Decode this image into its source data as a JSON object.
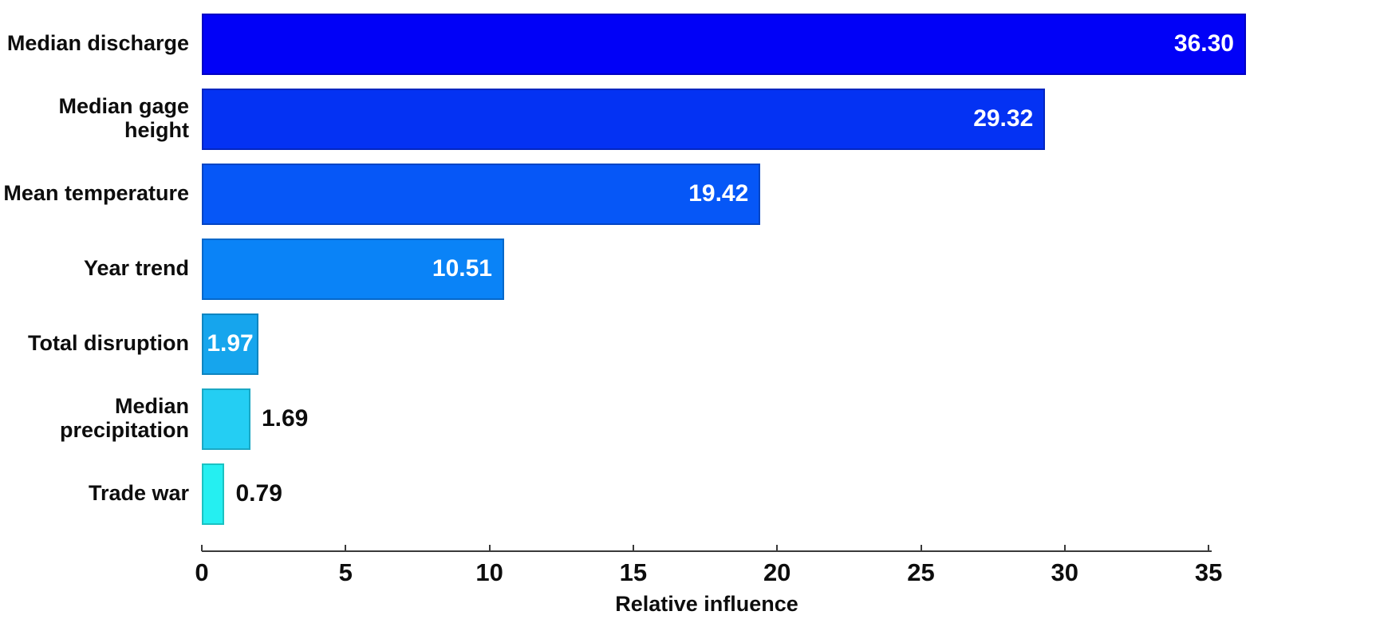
{
  "chart_data": {
    "type": "bar",
    "orientation": "horizontal",
    "title": "",
    "xlabel": "Relative influence",
    "ylabel": "",
    "categories": [
      "Median discharge",
      "Median gage height",
      "Mean temperature",
      "Year trend",
      "Total disruption",
      "Median precipitation",
      "Trade war"
    ],
    "values": [
      36.3,
      29.32,
      19.42,
      10.51,
      1.97,
      1.69,
      0.79
    ],
    "value_labels": [
      "36.30",
      "29.32",
      "19.42",
      "10.51",
      "1.97",
      "1.69",
      "0.79"
    ],
    "bar_colors": [
      "#0101f7",
      "#0432f3",
      "#0657f7",
      "#0a83f7",
      "#16a5ed",
      "#24cef3",
      "#25eff1"
    ],
    "bar_border_colors": [
      "#0000c4",
      "#0426c0",
      "#0345c4",
      "#0668ca",
      "#0f85c0",
      "#1aa8c4",
      "#1bc2c2"
    ],
    "value_label_positions": [
      "inside",
      "inside",
      "inside",
      "inside",
      "inside",
      "outside",
      "outside"
    ],
    "value_label_color_inside": "#ffffff",
    "value_label_color_outside": "#0d0d0d",
    "x_ticks": [
      0,
      5,
      10,
      15,
      20,
      25,
      30,
      35
    ],
    "xlim": [
      0,
      36.5
    ],
    "grid": false,
    "legend": false,
    "axis_color": "#3a3a3a"
  }
}
